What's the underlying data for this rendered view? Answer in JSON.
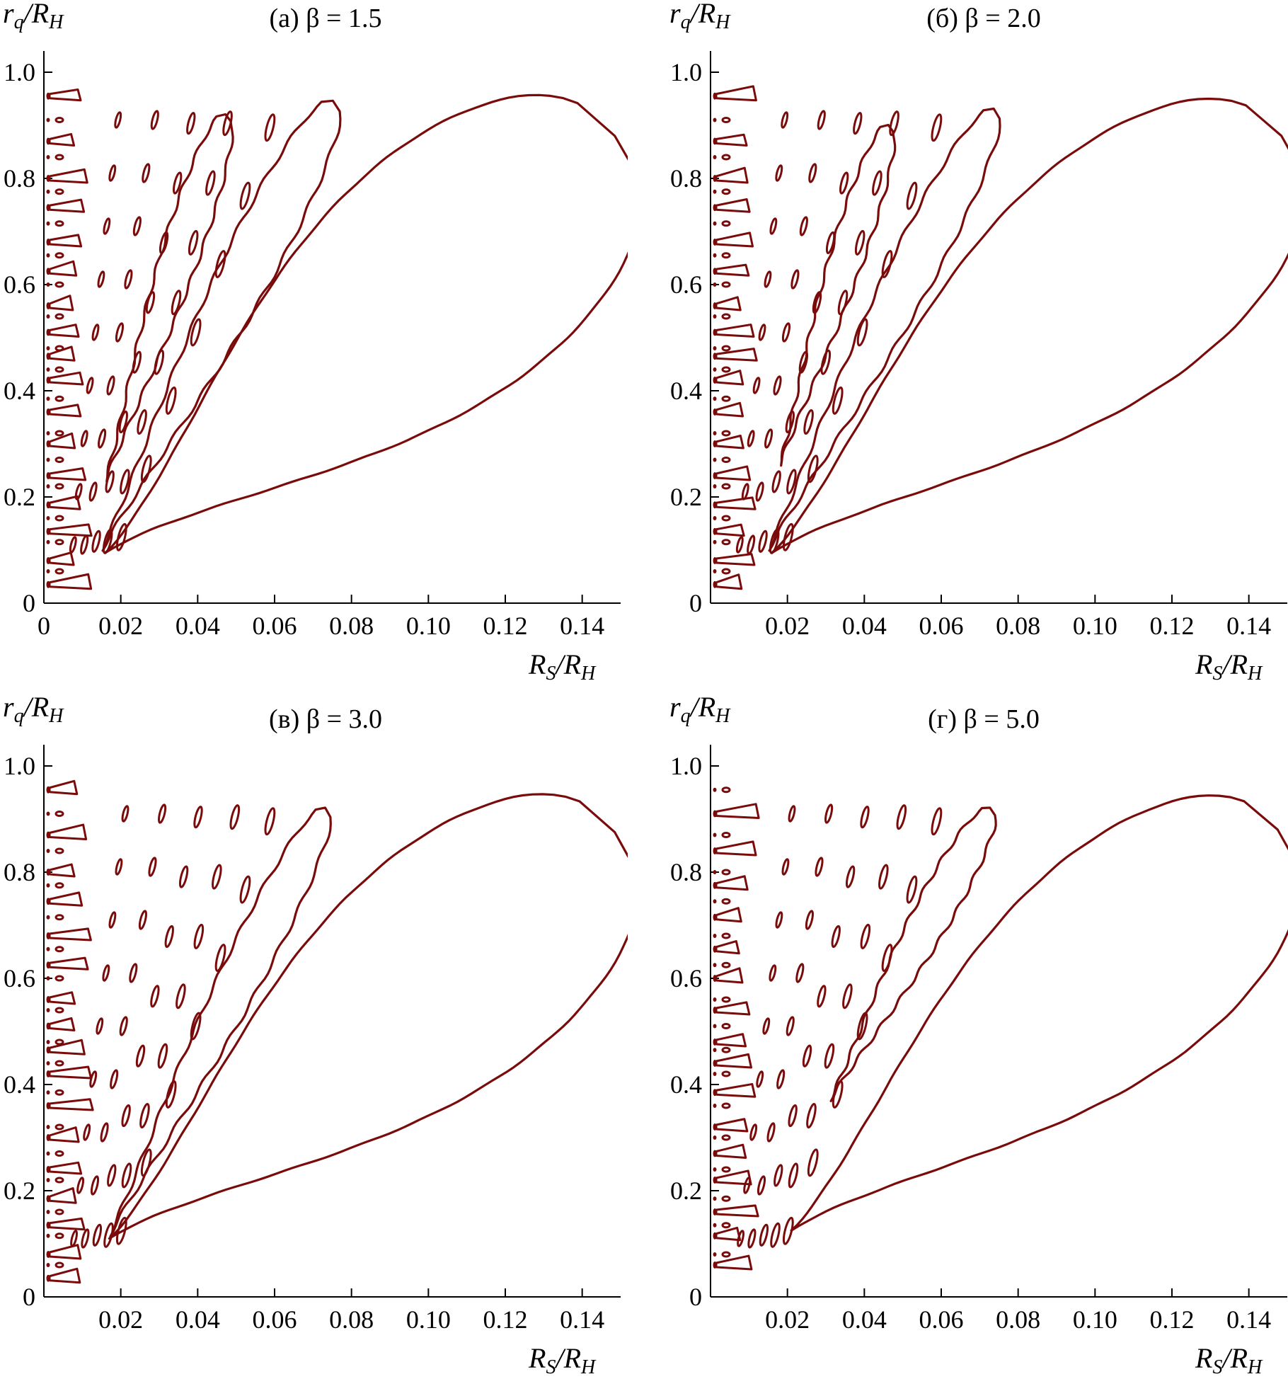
{
  "figure": {
    "contour_color": "#7a0b0b"
  },
  "chart_data": [
    {
      "type": "contour",
      "panel_id": "a",
      "title": "(а) β = 1.5",
      "xlabel": "R_S/R_H",
      "ylabel": "r_q/R_H",
      "xlim": [
        0,
        0.15
      ],
      "ylim": [
        0,
        1.04
      ],
      "xticks": [
        0,
        0.02,
        0.04,
        0.06,
        0.08,
        0.1,
        0.12,
        0.14
      ],
      "xtick_labels": [
        "0",
        "0.02",
        "0.04",
        "0.06",
        "0.08",
        "0.10",
        "0.12",
        "0.14"
      ],
      "yticks": [
        0,
        0.2,
        0.4,
        0.6,
        0.8,
        1.0
      ],
      "ytick_labels": [
        "0",
        "0.2",
        "0.4",
        "0.6",
        "0.8",
        "1.0"
      ],
      "lobes": [
        {
          "name": "main-lobe",
          "base": [
            0.016,
            0.095
          ],
          "tip": [
            0.1485,
            0.88
          ],
          "width": 0.085
        },
        {
          "name": "second-lobe",
          "base": [
            0.015,
            0.1
          ],
          "tip": [
            0.0755,
            0.945
          ],
          "width": 0.025
        },
        {
          "name": "third-lobe",
          "base": [
            0.016,
            0.23
          ],
          "tip": [
            0.0475,
            0.92
          ],
          "width": 0.018
        }
      ],
      "contour_rows": [
        0.035,
        0.06,
        0.08,
        0.115,
        0.135,
        0.16,
        0.185,
        0.22,
        0.24,
        0.27,
        0.3,
        0.32,
        0.36,
        0.385,
        0.42,
        0.44,
        0.465,
        0.48,
        0.51,
        0.54,
        0.56,
        0.6,
        0.625,
        0.655,
        0.68,
        0.715,
        0.745,
        0.775,
        0.8,
        0.84,
        0.87,
        0.91,
        0.955
      ]
    },
    {
      "type": "contour",
      "panel_id": "b",
      "title": "(б) β = 2.0",
      "xlabel": "R_S/R_H",
      "ylabel": "r_q/R_H",
      "xlim": [
        0,
        0.15
      ],
      "ylim": [
        0,
        1.04
      ],
      "xticks": [
        0.02,
        0.04,
        0.06,
        0.08,
        0.1,
        0.12,
        0.14
      ],
      "xtick_labels": [
        "0.02",
        "0.04",
        "0.06",
        "0.08",
        "0.10",
        "0.12",
        "0.14"
      ],
      "yticks": [
        0,
        0.2,
        0.4,
        0.6,
        0.8,
        1.0
      ],
      "ytick_labels": [
        "0",
        "0.2",
        "0.4",
        "0.6",
        "0.8",
        "1.0"
      ],
      "lobes": [
        {
          "name": "main-lobe",
          "base": [
            0.016,
            0.095
          ],
          "tip": [
            0.1485,
            0.88
          ],
          "width": 0.08
        },
        {
          "name": "second-lobe",
          "base": [
            0.015,
            0.1
          ],
          "tip": [
            0.074,
            0.93
          ],
          "width": 0.022
        },
        {
          "name": "third-lobe",
          "base": [
            0.018,
            0.26
          ],
          "tip": [
            0.0465,
            0.9
          ],
          "width": 0.016
        }
      ],
      "contour_rows": [
        0.035,
        0.06,
        0.08,
        0.115,
        0.135,
        0.16,
        0.185,
        0.22,
        0.24,
        0.27,
        0.3,
        0.32,
        0.36,
        0.385,
        0.42,
        0.44,
        0.465,
        0.48,
        0.51,
        0.54,
        0.56,
        0.6,
        0.625,
        0.655,
        0.68,
        0.715,
        0.745,
        0.775,
        0.8,
        0.84,
        0.87,
        0.91,
        0.955
      ]
    },
    {
      "type": "contour",
      "panel_id": "c",
      "title": "(в) β = 3.0",
      "xlabel": "R_S/R_H",
      "ylabel": "r_q/R_H",
      "xlim": [
        0,
        0.15
      ],
      "ylim": [
        0,
        1.04
      ],
      "xticks": [
        0.02,
        0.04,
        0.06,
        0.08,
        0.1,
        0.12,
        0.14
      ],
      "xtick_labels": [
        "0.02",
        "0.04",
        "0.06",
        "0.08",
        "0.10",
        "0.12",
        "0.14"
      ],
      "yticks": [
        0,
        0.2,
        0.4,
        0.6,
        0.8,
        1.0
      ],
      "ytick_labels": [
        "0",
        "0.2",
        "0.4",
        "0.6",
        "0.8",
        "1.0"
      ],
      "lobes": [
        {
          "name": "main-lobe",
          "base": [
            0.017,
            0.11
          ],
          "tip": [
            0.1485,
            0.875
          ],
          "width": 0.08
        },
        {
          "name": "second-lobe",
          "base": [
            0.017,
            0.115
          ],
          "tip": [
            0.0735,
            0.92
          ],
          "width": 0.02
        }
      ],
      "contour_rows": [
        0.035,
        0.06,
        0.08,
        0.115,
        0.135,
        0.16,
        0.185,
        0.22,
        0.24,
        0.27,
        0.3,
        0.32,
        0.36,
        0.385,
        0.42,
        0.44,
        0.465,
        0.48,
        0.51,
        0.54,
        0.56,
        0.6,
        0.625,
        0.655,
        0.68,
        0.715,
        0.745,
        0.775,
        0.8,
        0.84,
        0.87,
        0.91,
        0.955
      ]
    },
    {
      "type": "contour",
      "panel_id": "d",
      "title": "(г) β = 5.0",
      "xlabel": "R_S/R_H",
      "ylabel": "r_q/R_H",
      "xlim": [
        0,
        0.15
      ],
      "ylim": [
        0,
        1.04
      ],
      "xticks": [
        0.02,
        0.04,
        0.06,
        0.08,
        0.1,
        0.12,
        0.14
      ],
      "xtick_labels": [
        "0.02",
        "0.04",
        "0.06",
        "0.08",
        "0.10",
        "0.12",
        "0.14"
      ],
      "yticks": [
        0,
        0.2,
        0.4,
        0.6,
        0.8,
        1.0
      ],
      "ytick_labels": [
        "0",
        "0.2",
        "0.4",
        "0.6",
        "0.8",
        "1.0"
      ],
      "lobes": [
        {
          "name": "main-lobe",
          "base": [
            0.021,
            0.125
          ],
          "tip": [
            0.1475,
            0.88
          ],
          "width": 0.075
        },
        {
          "name": "second-lobe",
          "base": [
            0.031,
            0.37
          ],
          "tip": [
            0.073,
            0.92
          ],
          "width": 0.018
        }
      ],
      "contour_rows": [
        0.06,
        0.08,
        0.115,
        0.135,
        0.16,
        0.185,
        0.22,
        0.24,
        0.27,
        0.3,
        0.32,
        0.36,
        0.385,
        0.42,
        0.44,
        0.465,
        0.48,
        0.51,
        0.54,
        0.56,
        0.6,
        0.625,
        0.655,
        0.68,
        0.715,
        0.745,
        0.775,
        0.8,
        0.84,
        0.87,
        0.91,
        0.955
      ]
    }
  ]
}
